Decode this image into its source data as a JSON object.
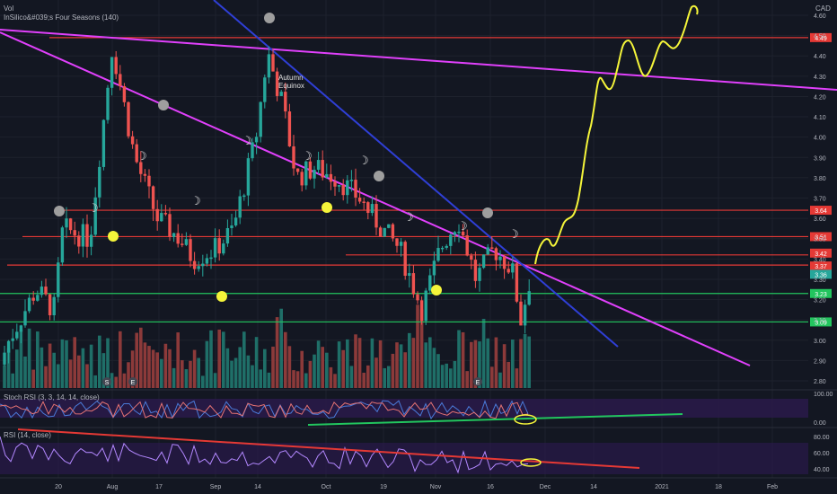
{
  "header": {
    "symbol": "Vol",
    "indicator_title": "InSilico&#039;s Four Seasons (140)",
    "currency": "CAD"
  },
  "chart_data": [
    {
      "type": "candlestick",
      "title": "",
      "ylim": [
        2.75,
        4.65
      ],
      "y_ticks": [
        "4.60",
        "4.50",
        "4.40",
        "4.30",
        "4.20",
        "4.10",
        "4.00",
        "3.90",
        "3.80",
        "3.70",
        "3.60",
        "3.50",
        "3.40",
        "3.30",
        "3.20",
        "3.10",
        "3.00",
        "2.90",
        "2.80"
      ],
      "x_ticks": [
        "20",
        "Aug",
        "17",
        "Sep",
        "14",
        "Oct",
        "19",
        "Nov",
        "16",
        "Dec",
        "14",
        "2021",
        "18",
        "Feb"
      ],
      "price_tags": [
        {
          "label": "4.49",
          "value": 4.49,
          "color": "#e53935"
        },
        {
          "label": "3.64",
          "value": 3.64,
          "color": "#e53935"
        },
        {
          "label": "3.51",
          "value": 3.51,
          "color": "#e53935"
        },
        {
          "label": "3.42",
          "value": 3.42,
          "color": "#e53935"
        },
        {
          "label": "3.37",
          "value": 3.37,
          "color": "#e53935"
        },
        {
          "label": "3.36",
          "value": 3.36,
          "color": "#26a69a"
        },
        {
          "label": "3.23",
          "value": 3.23,
          "color": "#22c55e"
        },
        {
          "label": "3.09",
          "value": 3.09,
          "color": "#22c55e"
        }
      ],
      "horizontal_lines": [
        {
          "value": 4.49,
          "color": "#e53935"
        },
        {
          "value": 3.64,
          "color": "#e53935"
        },
        {
          "value": 3.51,
          "color": "#e53935"
        },
        {
          "value": 3.42,
          "color": "#e53935"
        },
        {
          "value": 3.37,
          "color": "#e53935"
        },
        {
          "value": 3.23,
          "color": "#22c55e"
        },
        {
          "value": 3.09,
          "color": "#22c55e"
        }
      ],
      "annotation": "Autumn\nEquinox",
      "event_markers": [
        "S",
        "E",
        "E"
      ],
      "colors": {
        "up": "#26a69a",
        "down": "#ef5350",
        "trend_magenta": "#e040fb",
        "trend_blue": "#2f3fd6",
        "projection": "#f5f53a"
      }
    },
    {
      "type": "line",
      "title": "Stoch RSI (3, 3, 14, 14, close)",
      "ylim": [
        0,
        100
      ],
      "y_ticks": [
        "100.00",
        "0.00"
      ]
    },
    {
      "type": "line",
      "title": "RSI (14, close)",
      "ylim": [
        25,
        90
      ],
      "y_ticks": [
        "80.00",
        "60.00",
        "40.00"
      ]
    }
  ]
}
